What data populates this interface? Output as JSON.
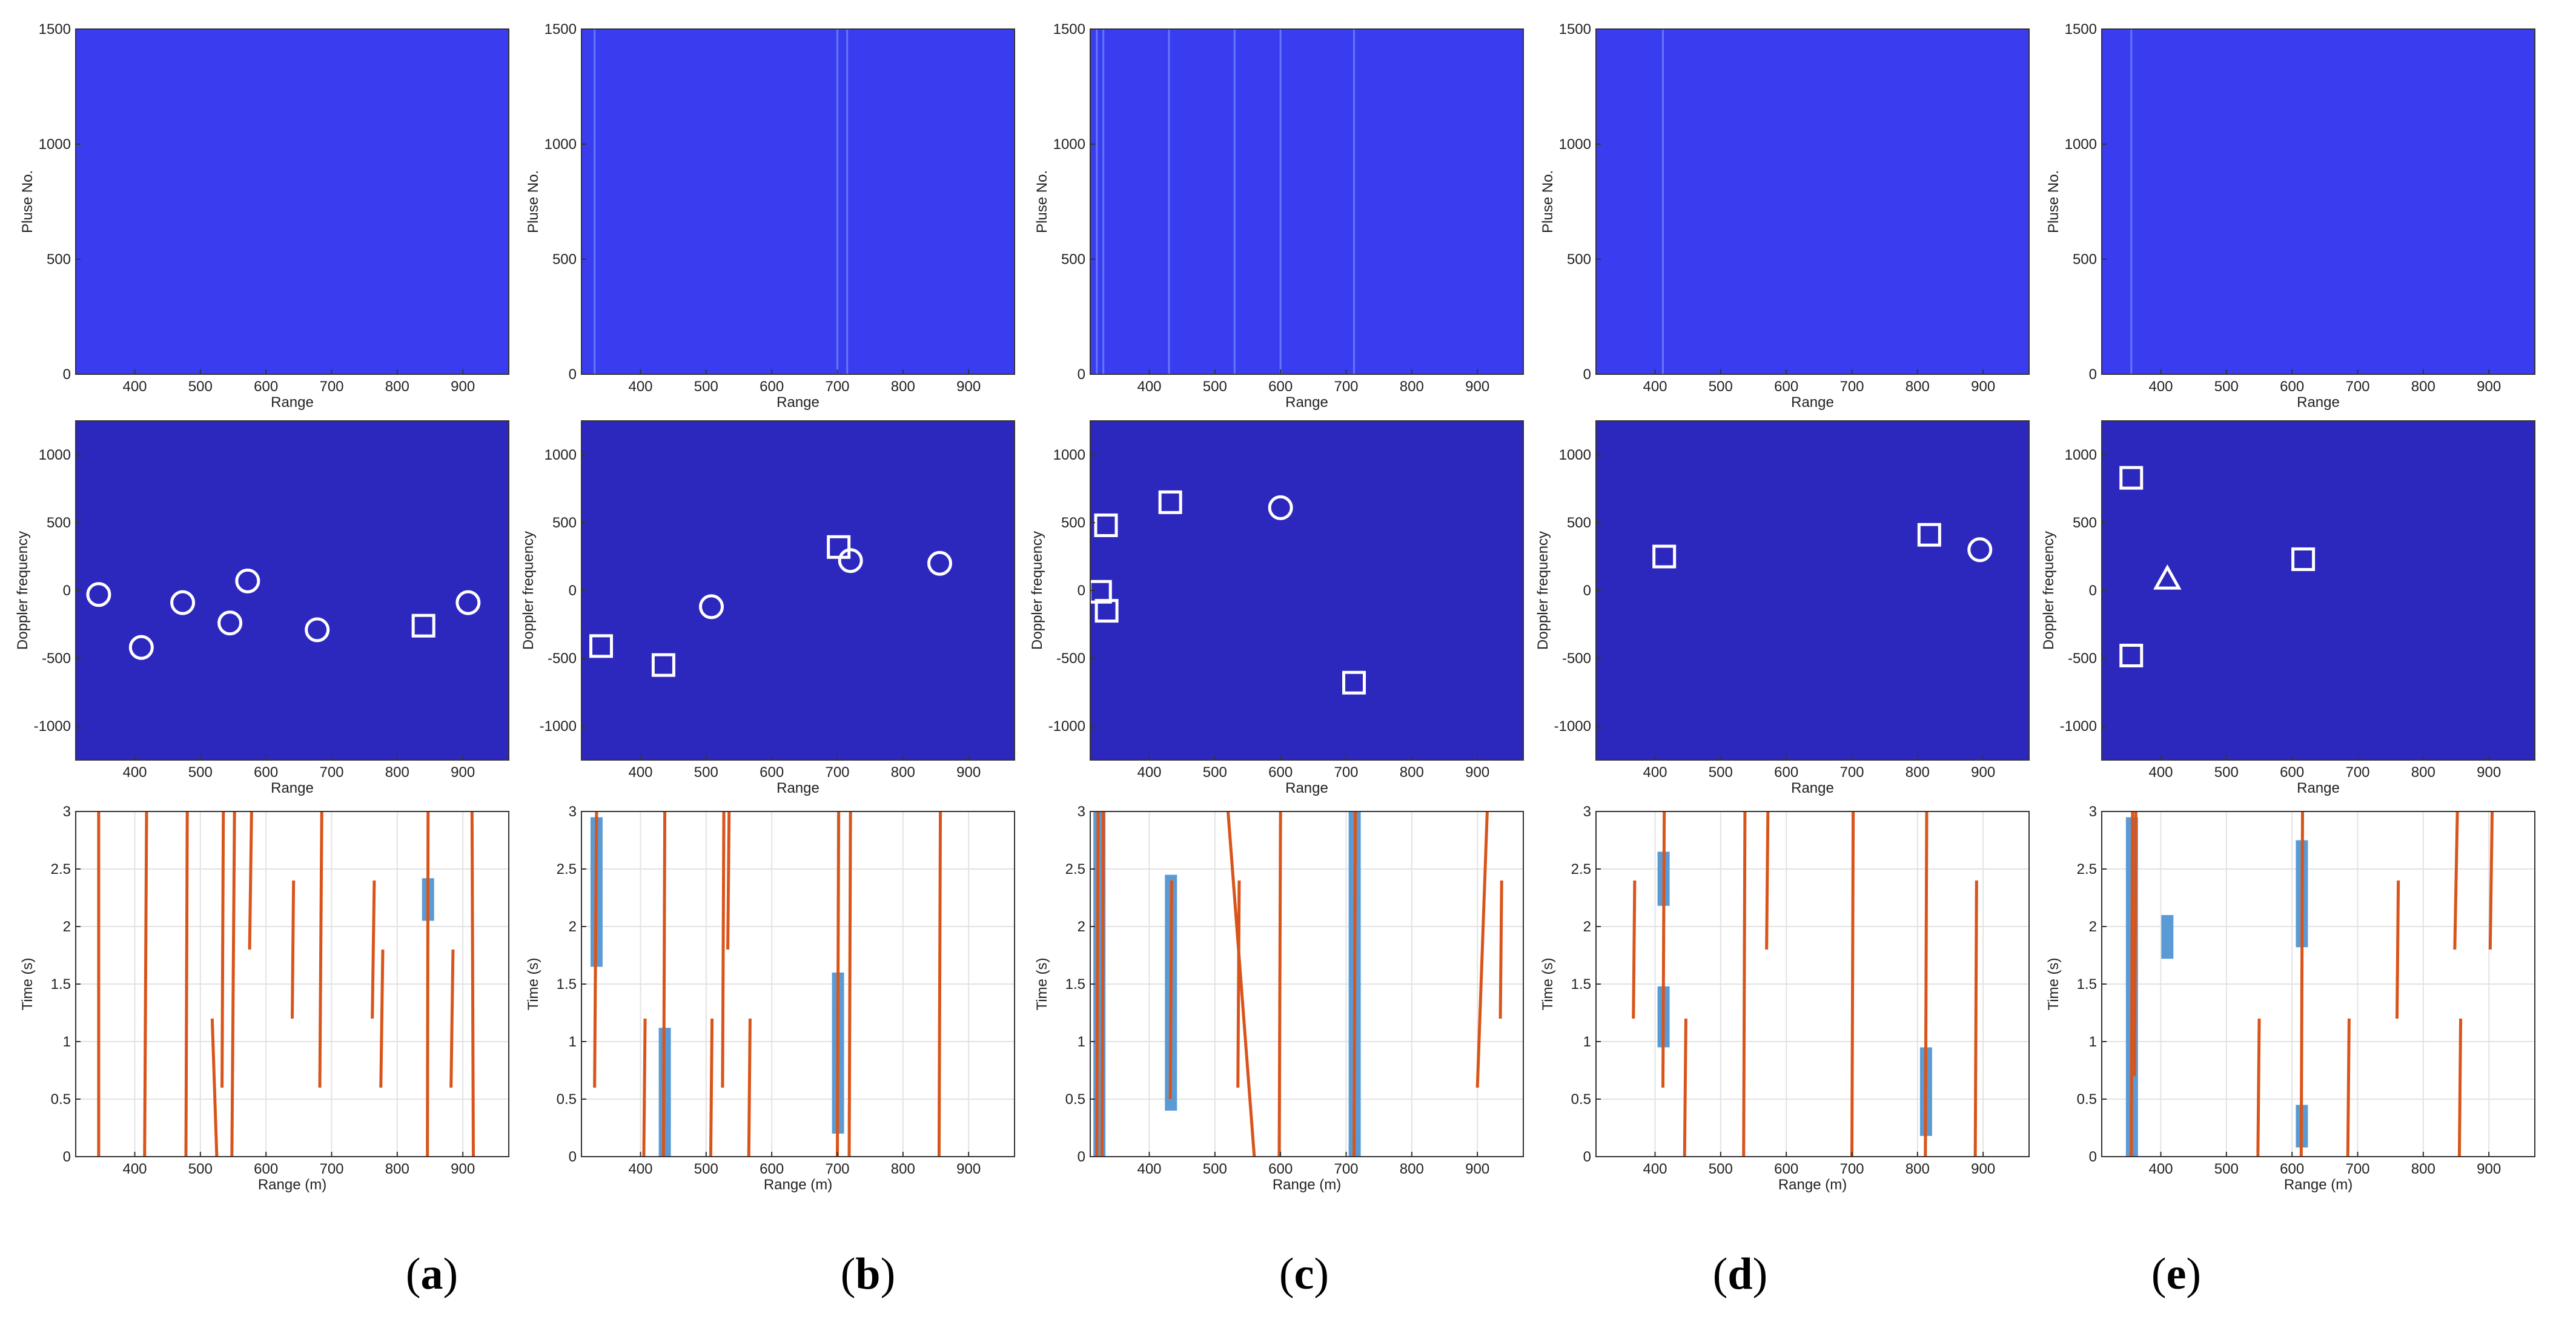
{
  "colors": {
    "panel_top": "#3a3cf0",
    "panel_mid": "#2d28bd",
    "marker": "#ffffff",
    "track": "#d9541a",
    "detection": "#5a9bd5",
    "axis": "#333333",
    "grid": "#e3e3e3"
  },
  "labels": {
    "pulse_ylabel": "Pluse No.",
    "doppler_ylabel": "Doppler frequency",
    "range_xlabel": "Range",
    "time_ylabel": "Time (s)",
    "range_m_xlabel": "Range (m)"
  },
  "captions": [
    {
      "open": "(",
      "letter": "a",
      "close": ")"
    },
    {
      "open": "(",
      "letter": "b",
      "close": ")"
    },
    {
      "open": "(",
      "letter": "c",
      "close": ")"
    },
    {
      "open": "(",
      "letter": "d",
      "close": ")"
    },
    {
      "open": "(",
      "letter": "e",
      "close": ")"
    }
  ],
  "chart_data": [
    {
      "panel": "a",
      "pulse": {
        "type": "heatmap",
        "xlim": [
          310,
          970
        ],
        "ylim": [
          0,
          1500
        ],
        "xticks": [
          400,
          500,
          600,
          700,
          800,
          900
        ],
        "yticks": [
          0,
          500,
          1000,
          1500
        ],
        "faint_lines": []
      },
      "doppler": {
        "type": "scatter",
        "xlim": [
          310,
          970
        ],
        "ylim": [
          -1250,
          1250
        ],
        "xticks": [
          400,
          500,
          600,
          700,
          800,
          900
        ],
        "yticks": [
          -1000,
          -500,
          0,
          500,
          1000
        ],
        "points": [
          {
            "shape": "circle",
            "x": 345,
            "y": -30
          },
          {
            "shape": "circle",
            "x": 410,
            "y": -420
          },
          {
            "shape": "circle",
            "x": 473,
            "y": -90
          },
          {
            "shape": "circle",
            "x": 545,
            "y": -240
          },
          {
            "shape": "circle",
            "x": 572,
            "y": 70
          },
          {
            "shape": "circle",
            "x": 678,
            "y": -290
          },
          {
            "shape": "square",
            "x": 840,
            "y": -260
          },
          {
            "shape": "circle",
            "x": 908,
            "y": -90
          }
        ]
      },
      "tracks": {
        "type": "line",
        "xlim": [
          310,
          970
        ],
        "ylim": [
          0,
          3
        ],
        "xticks": [
          400,
          500,
          600,
          700,
          800,
          900
        ],
        "yticks": [
          0,
          0.5,
          1,
          1.5,
          2,
          2.5,
          3
        ],
        "lines": [
          {
            "x0": 345,
            "y0": 0,
            "x1": 345,
            "y1": 3
          },
          {
            "x0": 415,
            "y0": 0,
            "x1": 418,
            "y1": 3
          },
          {
            "x0": 478,
            "y0": 0,
            "x1": 480,
            "y1": 3
          },
          {
            "x0": 518,
            "y0": 1.2,
            "x1": 525,
            "y1": 0
          },
          {
            "x0": 533,
            "y0": 0.6,
            "x1": 535,
            "y1": 3
          },
          {
            "x0": 548,
            "y0": 0,
            "x1": 552,
            "y1": 3
          },
          {
            "x0": 575,
            "y0": 1.8,
            "x1": 578,
            "y1": 3
          },
          {
            "x0": 640,
            "y0": 1.2,
            "x1": 642,
            "y1": 2.4
          },
          {
            "x0": 682,
            "y0": 0.6,
            "x1": 685,
            "y1": 3
          },
          {
            "x0": 762,
            "y0": 1.2,
            "x1": 765,
            "y1": 2.4
          },
          {
            "x0": 775,
            "y0": 0.6,
            "x1": 778,
            "y1": 1.8
          },
          {
            "x0": 846,
            "y0": 0,
            "x1": 847,
            "y1": 3
          },
          {
            "x0": 882,
            "y0": 0.6,
            "x1": 885,
            "y1": 1.8
          },
          {
            "x0": 916,
            "y0": 0,
            "x1": 914,
            "y1": 3
          }
        ],
        "detections": [
          {
            "x": 847,
            "y0": 2.05,
            "y1": 2.42
          }
        ]
      }
    },
    {
      "panel": "b",
      "pulse": {
        "type": "heatmap",
        "xlim": [
          310,
          970
        ],
        "ylim": [
          0,
          1500
        ],
        "xticks": [
          400,
          500,
          600,
          700,
          800,
          900
        ],
        "yticks": [
          0,
          500,
          1000,
          1500
        ],
        "faint_lines": [
          330,
          700,
          715
        ]
      },
      "doppler": {
        "type": "scatter",
        "xlim": [
          310,
          970
        ],
        "ylim": [
          -1250,
          1250
        ],
        "xticks": [
          400,
          500,
          600,
          700,
          800,
          900
        ],
        "yticks": [
          -1000,
          -500,
          0,
          500,
          1000
        ],
        "points": [
          {
            "shape": "square",
            "x": 340,
            "y": -410
          },
          {
            "shape": "square",
            "x": 435,
            "y": -550
          },
          {
            "shape": "circle",
            "x": 508,
            "y": -120
          },
          {
            "shape": "square",
            "x": 702,
            "y": 320
          },
          {
            "shape": "circle",
            "x": 720,
            "y": 220
          },
          {
            "shape": "circle",
            "x": 856,
            "y": 200
          }
        ]
      },
      "tracks": {
        "type": "line",
        "xlim": [
          310,
          970
        ],
        "ylim": [
          0,
          3
        ],
        "xticks": [
          400,
          500,
          600,
          700,
          800,
          900
        ],
        "yticks": [
          0,
          0.5,
          1,
          1.5,
          2,
          2.5,
          3
        ],
        "lines": [
          {
            "x0": 330,
            "y0": 0.6,
            "x1": 333,
            "y1": 3
          },
          {
            "x0": 405,
            "y0": 0,
            "x1": 407,
            "y1": 1.2
          },
          {
            "x0": 435,
            "y0": 0,
            "x1": 437,
            "y1": 3
          },
          {
            "x0": 507,
            "y0": 0,
            "x1": 509,
            "y1": 1.2
          },
          {
            "x0": 525,
            "y0": 0.6,
            "x1": 527,
            "y1": 3
          },
          {
            "x0": 533,
            "y0": 1.8,
            "x1": 535,
            "y1": 3
          },
          {
            "x0": 565,
            "y0": 0,
            "x1": 567,
            "y1": 1.2
          },
          {
            "x0": 700,
            "y0": 0,
            "x1": 702,
            "y1": 3
          },
          {
            "x0": 718,
            "y0": 0,
            "x1": 720,
            "y1": 3
          },
          {
            "x0": 855,
            "y0": 0,
            "x1": 857,
            "y1": 3
          }
        ],
        "detections": [
          {
            "x": 333,
            "y0": 1.65,
            "y1": 2.95
          },
          {
            "x": 437,
            "y0": 0,
            "y1": 1.12
          },
          {
            "x": 701,
            "y0": 0.2,
            "y1": 1.6
          }
        ]
      }
    },
    {
      "panel": "c",
      "pulse": {
        "type": "heatmap",
        "xlim": [
          310,
          970
        ],
        "ylim": [
          0,
          1500
        ],
        "xticks": [
          400,
          500,
          600,
          700,
          800,
          900
        ],
        "yticks": [
          0,
          500,
          1000,
          1500
        ],
        "faint_lines": [
          320,
          330,
          430,
          530,
          600,
          712
        ]
      },
      "doppler": {
        "type": "scatter",
        "xlim": [
          310,
          970
        ],
        "ylim": [
          -1250,
          1250
        ],
        "xticks": [
          400,
          500,
          600,
          700,
          800,
          900
        ],
        "yticks": [
          -1000,
          -500,
          0,
          500,
          1000
        ],
        "points": [
          {
            "shape": "square",
            "x": 334,
            "y": 480
          },
          {
            "shape": "square",
            "x": 325,
            "y": -10
          },
          {
            "shape": "square",
            "x": 335,
            "y": -150
          },
          {
            "shape": "square",
            "x": 432,
            "y": 650
          },
          {
            "shape": "circle",
            "x": 600,
            "y": 610
          },
          {
            "shape": "square",
            "x": 712,
            "y": -680
          }
        ]
      },
      "tracks": {
        "type": "line",
        "xlim": [
          310,
          970
        ],
        "ylim": [
          0,
          3
        ],
        "xticks": [
          400,
          500,
          600,
          700,
          800,
          900
        ],
        "yticks": [
          0,
          0.5,
          1,
          1.5,
          2,
          2.5,
          3
        ],
        "lines": [
          {
            "x0": 320,
            "y0": 0,
            "x1": 322,
            "y1": 3
          },
          {
            "x0": 328,
            "y0": 0,
            "x1": 330,
            "y1": 3
          },
          {
            "x0": 432,
            "y0": 0.5,
            "x1": 434,
            "y1": 2.4
          },
          {
            "x0": 520,
            "y0": 3,
            "x1": 560,
            "y1": 0
          },
          {
            "x0": 535,
            "y0": 0.6,
            "x1": 537,
            "y1": 2.4
          },
          {
            "x0": 598,
            "y0": 0,
            "x1": 600,
            "y1": 3
          },
          {
            "x0": 712,
            "y0": 0,
            "x1": 714,
            "y1": 3
          },
          {
            "x0": 900,
            "y0": 0.6,
            "x1": 915,
            "y1": 3
          },
          {
            "x0": 935,
            "y0": 1.2,
            "x1": 937,
            "y1": 2.4
          }
        ],
        "detections": [
          {
            "x": 324,
            "y0": 0,
            "y1": 3
          },
          {
            "x": 433,
            "y0": 0.4,
            "y1": 2.45
          },
          {
            "x": 713,
            "y0": 0,
            "y1": 3
          }
        ]
      }
    },
    {
      "panel": "d",
      "pulse": {
        "type": "heatmap",
        "xlim": [
          310,
          970
        ],
        "ylim": [
          0,
          1500
        ],
        "xticks": [
          400,
          500,
          600,
          700,
          800,
          900
        ],
        "yticks": [
          0,
          500,
          1000,
          1500
        ],
        "faint_lines": [
          412
        ]
      },
      "doppler": {
        "type": "scatter",
        "xlim": [
          310,
          970
        ],
        "ylim": [
          -1250,
          1250
        ],
        "xticks": [
          400,
          500,
          600,
          700,
          800,
          900
        ],
        "yticks": [
          -1000,
          -500,
          0,
          500,
          1000
        ],
        "points": [
          {
            "shape": "square",
            "x": 414,
            "y": 250
          },
          {
            "shape": "square",
            "x": 818,
            "y": 410
          },
          {
            "shape": "circle",
            "x": 895,
            "y": 300
          }
        ]
      },
      "tracks": {
        "type": "line",
        "xlim": [
          310,
          970
        ],
        "ylim": [
          0,
          3
        ],
        "xticks": [
          400,
          500,
          600,
          700,
          800,
          900
        ],
        "yticks": [
          0,
          0.5,
          1,
          1.5,
          2,
          2.5,
          3
        ],
        "lines": [
          {
            "x0": 367,
            "y0": 1.2,
            "x1": 369,
            "y1": 2.4
          },
          {
            "x0": 412,
            "y0": 0.6,
            "x1": 414,
            "y1": 3
          },
          {
            "x0": 445,
            "y0": 0,
            "x1": 447,
            "y1": 1.2
          },
          {
            "x0": 535,
            "y0": 0,
            "x1": 537,
            "y1": 3
          },
          {
            "x0": 570,
            "y0": 1.8,
            "x1": 572,
            "y1": 3
          },
          {
            "x0": 700,
            "y0": 0,
            "x1": 702,
            "y1": 3
          },
          {
            "x0": 812,
            "y0": 0,
            "x1": 814,
            "y1": 3
          },
          {
            "x0": 888,
            "y0": 0,
            "x1": 890,
            "y1": 2.4
          }
        ],
        "detections": [
          {
            "x": 413,
            "y0": 2.18,
            "y1": 2.65
          },
          {
            "x": 413,
            "y0": 0.95,
            "y1": 1.48
          },
          {
            "x": 813,
            "y0": 0.18,
            "y1": 0.95
          }
        ]
      }
    },
    {
      "panel": "e",
      "pulse": {
        "type": "heatmap",
        "xlim": [
          310,
          970
        ],
        "ylim": [
          0,
          1500
        ],
        "xticks": [
          400,
          500,
          600,
          700,
          800,
          900
        ],
        "yticks": [
          0,
          500,
          1000,
          1500
        ],
        "faint_lines": [
          355
        ]
      },
      "doppler": {
        "type": "scatter",
        "xlim": [
          310,
          970
        ],
        "ylim": [
          -1250,
          1250
        ],
        "xticks": [
          400,
          500,
          600,
          700,
          800,
          900
        ],
        "yticks": [
          -1000,
          -500,
          0,
          500,
          1000
        ],
        "points": [
          {
            "shape": "square",
            "x": 355,
            "y": 830
          },
          {
            "shape": "square",
            "x": 355,
            "y": -480
          },
          {
            "shape": "triangle",
            "x": 410,
            "y": 80
          },
          {
            "shape": "square",
            "x": 617,
            "y": 230
          }
        ]
      },
      "tracks": {
        "type": "line",
        "xlim": [
          310,
          970
        ],
        "ylim": [
          0,
          3
        ],
        "xticks": [
          400,
          500,
          600,
          700,
          800,
          900
        ],
        "yticks": [
          0,
          0.5,
          1,
          1.5,
          2,
          2.5,
          3
        ],
        "lines": [
          {
            "x0": 355,
            "y0": 0,
            "x1": 357,
            "y1": 3
          },
          {
            "x0": 360,
            "y0": 0.7,
            "x1": 362,
            "y1": 3
          },
          {
            "x0": 548,
            "y0": 0,
            "x1": 550,
            "y1": 1.2
          },
          {
            "x0": 614,
            "y0": 0,
            "x1": 616,
            "y1": 3
          },
          {
            "x0": 685,
            "y0": 0,
            "x1": 687,
            "y1": 1.2
          },
          {
            "x0": 760,
            "y0": 1.2,
            "x1": 762,
            "y1": 2.4
          },
          {
            "x0": 848,
            "y0": 1.8,
            "x1": 852,
            "y1": 3
          },
          {
            "x0": 855,
            "y0": 0,
            "x1": 857,
            "y1": 1.2
          },
          {
            "x0": 902,
            "y0": 1.8,
            "x1": 905,
            "y1": 3
          }
        ],
        "detections": [
          {
            "x": 356,
            "y0": 0,
            "y1": 2.95
          },
          {
            "x": 410,
            "y0": 1.72,
            "y1": 2.1
          },
          {
            "x": 615,
            "y0": 1.82,
            "y1": 2.75
          },
          {
            "x": 615,
            "y0": 0.08,
            "y1": 0.45
          }
        ]
      }
    }
  ]
}
